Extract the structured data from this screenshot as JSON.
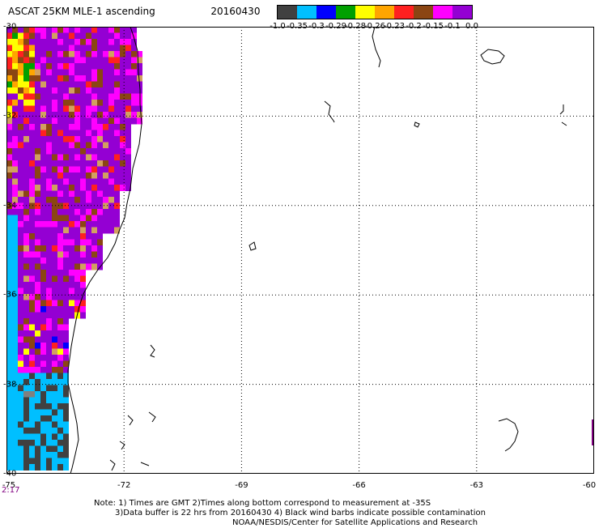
{
  "header": {
    "title": "ASCAT 25KM MLE-1 ascending",
    "date": "20160430"
  },
  "colorbar": {
    "colors": [
      "#404040",
      "#00bfff",
      "#0000ff",
      "#00a000",
      "#ffff00",
      "#ffa500",
      "#ff2020",
      "#8b4513",
      "#ff00ff",
      "#9400d3"
    ],
    "labels": [
      "-1.0",
      "-0.35",
      "-0.3",
      "-0.29",
      "-0.28",
      "-0.26",
      "-0.23",
      "-0.2",
      "-0.15",
      "-0.1",
      "0.0"
    ]
  },
  "axes": {
    "lat_labels": [
      "-30",
      "-32",
      "-34",
      "-36",
      "-38",
      "-40"
    ],
    "lon_labels": [
      "-75",
      "-72",
      "-69",
      "-66",
      "-63",
      "-60"
    ],
    "time_label": "2:17"
  },
  "notes": [
    "Note: 1) Times are GMT 2)Times along bottom correspond to measurement at -35S",
    "3)Data buffer is 22 hrs from 20160430 4) Black wind barbs indicate possible contamination",
    "NOAA/NESDIS/Center for Satellite Applications and Research"
  ]
}
